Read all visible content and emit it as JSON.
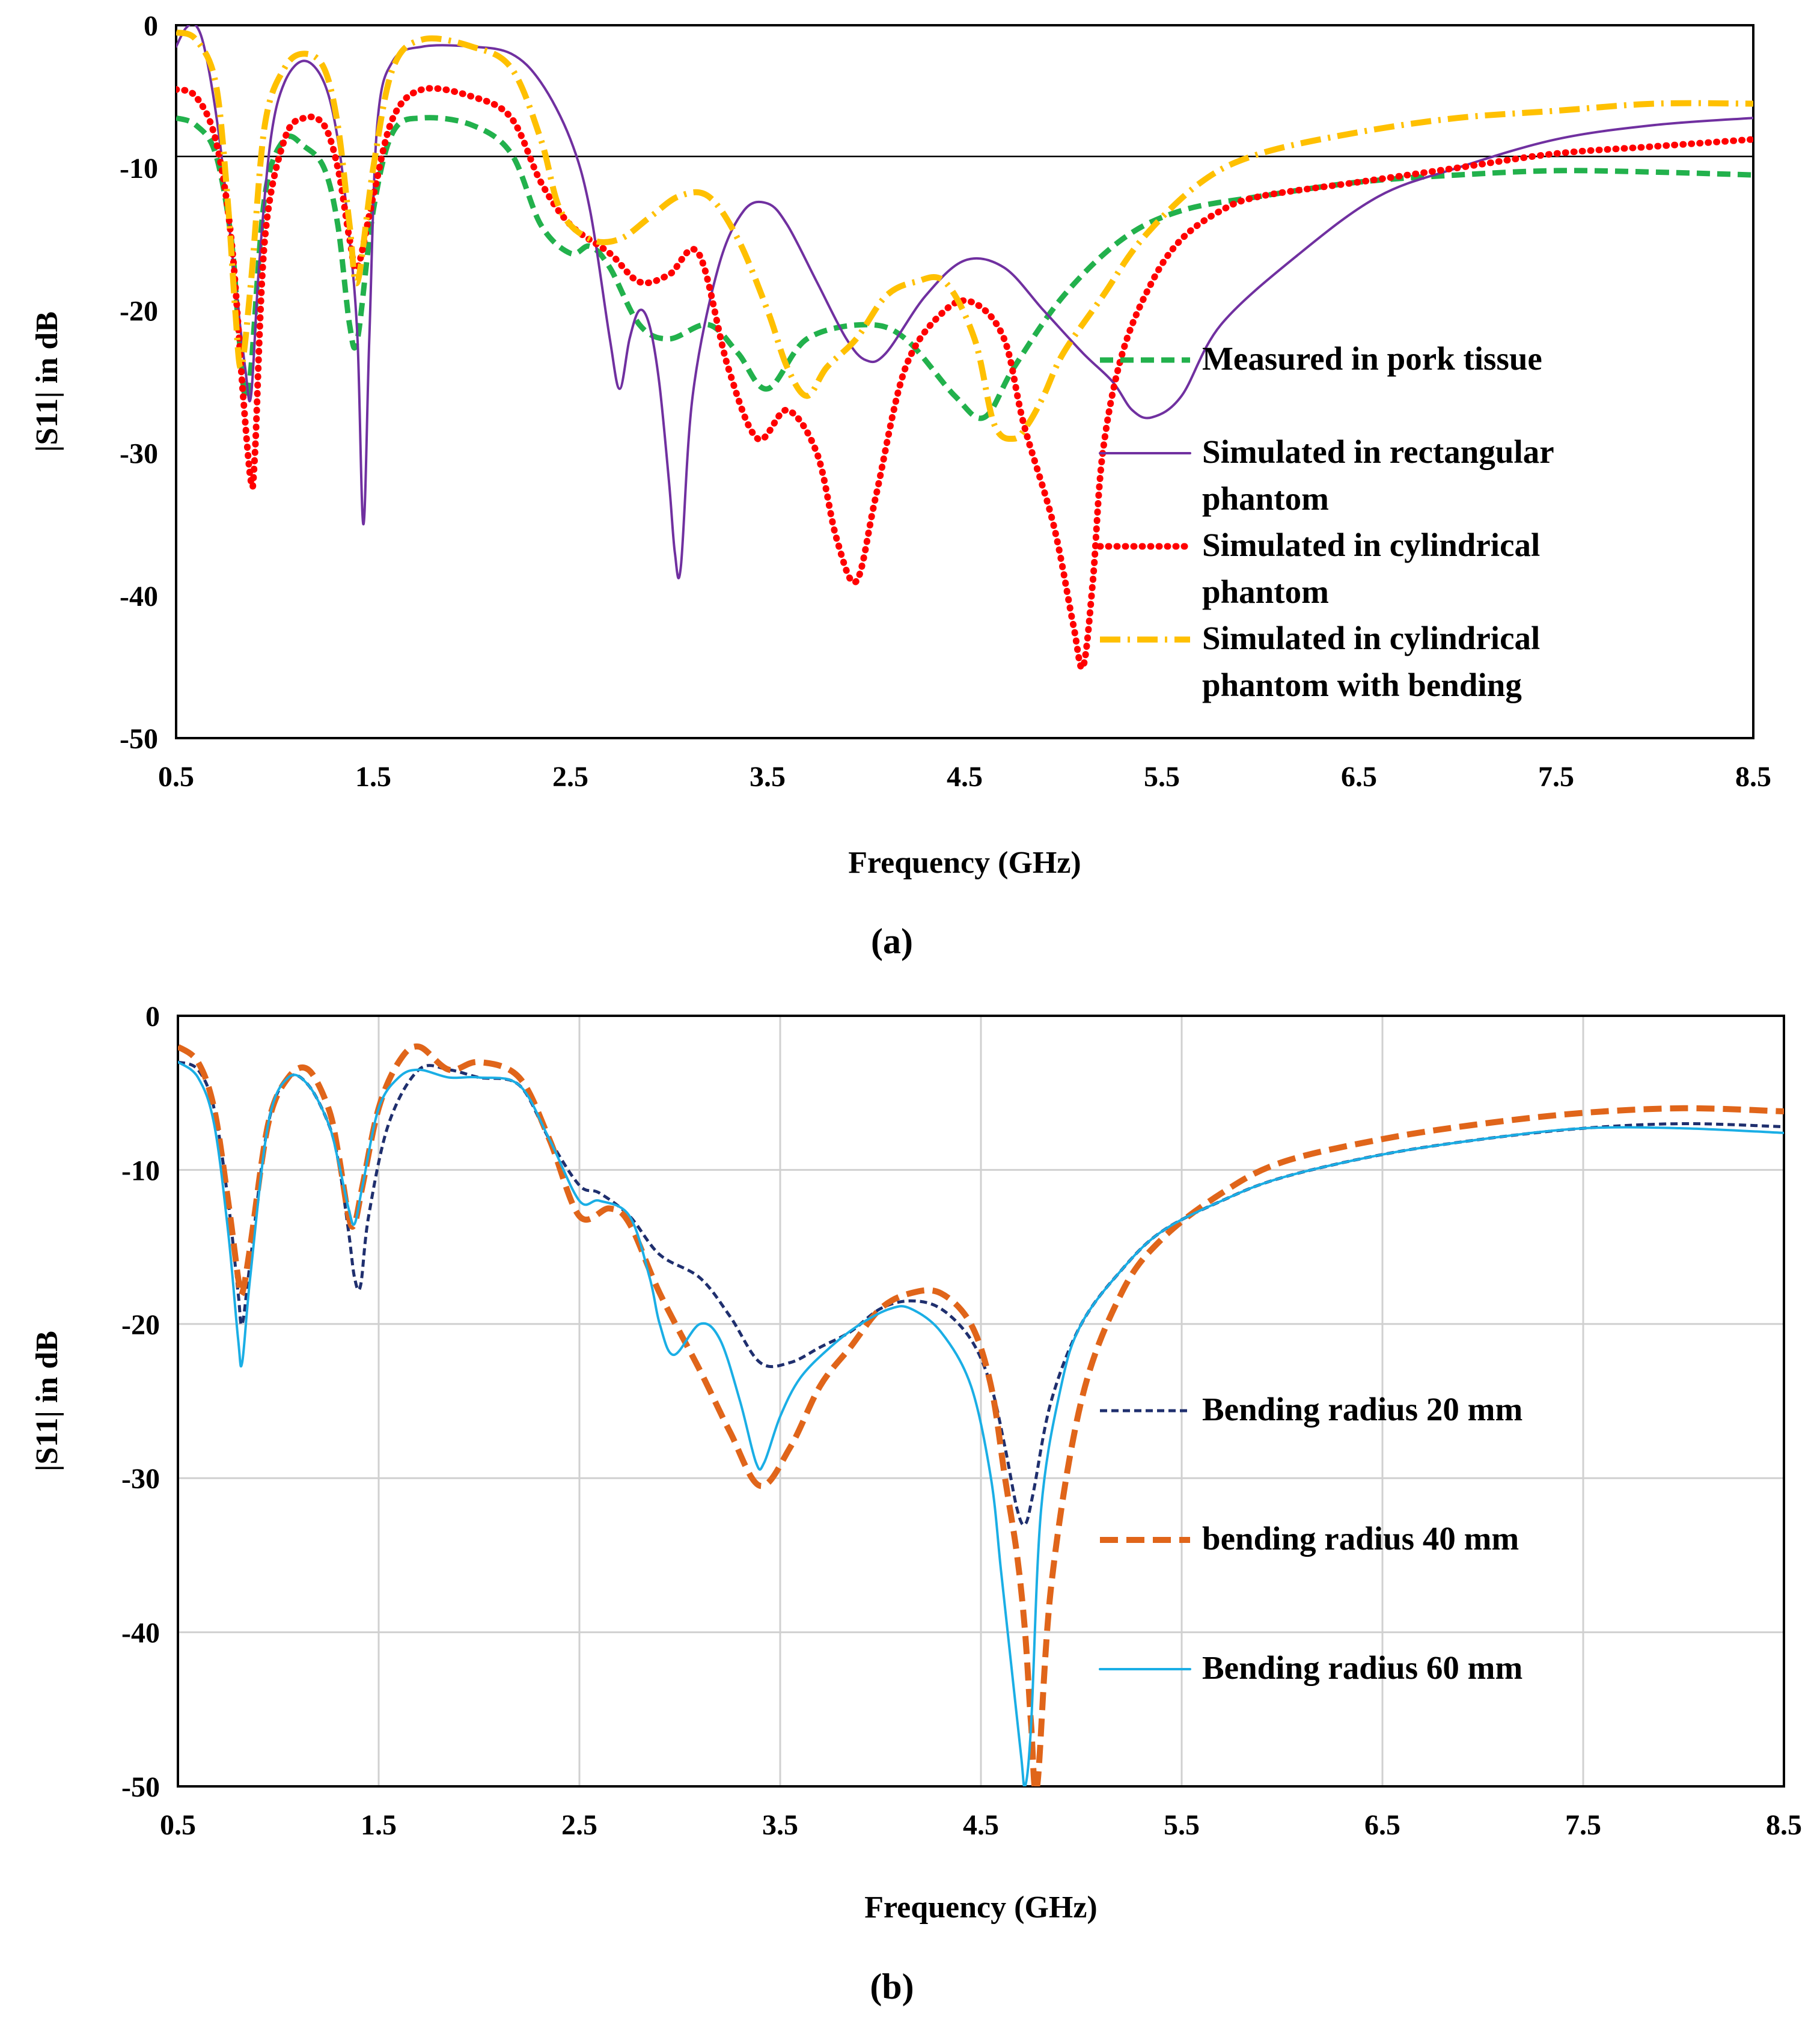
{
  "chart_data": [
    {
      "type": "line",
      "caption": "(a)",
      "title": "",
      "xlabel": "Frequency (GHz)",
      "ylabel": "|S11| in dB",
      "xlim": [
        0.5,
        8.5
      ],
      "ylim": [
        -50,
        0
      ],
      "xticks": [
        0.5,
        1.5,
        2.5,
        3.5,
        4.5,
        5.5,
        6.5,
        7.5,
        8.5
      ],
      "xtick_labels": [
        "0.5",
        "1.5",
        "2.5",
        "3.5",
        "4.5",
        "5.5",
        "6.5",
        "7.5",
        "8.5"
      ],
      "yticks": [
        0,
        -10,
        -20,
        -30,
        -40,
        -50
      ],
      "ytick_labels": [
        "0",
        "-10",
        "-20",
        "-30",
        "-40",
        "-50"
      ],
      "grid": false,
      "reference_line": -9.2,
      "legend_position": "right",
      "series": [
        {
          "name": "Measured in pork tissue",
          "legend_lines": [
            "Measured in pork tissue"
          ],
          "color": "#22b14c",
          "dash": "dash",
          "x": [
            0.5,
            0.6,
            0.7,
            0.78,
            0.82,
            0.85,
            0.88,
            0.95,
            1.05,
            1.15,
            1.25,
            1.32,
            1.38,
            1.42,
            1.5,
            1.6,
            1.75,
            2.0,
            2.2,
            2.35,
            2.5,
            2.6,
            2.7,
            2.85,
            3.0,
            3.2,
            3.35,
            3.5,
            3.7,
            4.0,
            4.2,
            4.45,
            4.6,
            4.75,
            5.0,
            5.3,
            5.6,
            6.0,
            6.5,
            7.0,
            7.5,
            8.0,
            8.5
          ],
          "y": [
            -6.5,
            -7,
            -9,
            -15,
            -22,
            -26,
            -24,
            -12,
            -8,
            -8.5,
            -10,
            -14,
            -21,
            -22,
            -13,
            -7.5,
            -6.5,
            -7,
            -9,
            -14,
            -16,
            -15.5,
            -17,
            -21,
            -22,
            -21,
            -23,
            -25.5,
            -22,
            -21,
            -22,
            -26,
            -27.5,
            -24,
            -19,
            -15,
            -13,
            -12,
            -11,
            -10.5,
            -10.2,
            -10.3,
            -10.5
          ]
        },
        {
          "name": "Simulated in rectangular phantom",
          "legend_lines": [
            "Simulated in rectangular",
            "phantom"
          ],
          "color": "#7030a0",
          "dash": "solid",
          "x": [
            0.5,
            0.55,
            0.6,
            0.65,
            0.72,
            0.8,
            0.85,
            0.88,
            0.92,
            0.98,
            1.05,
            1.15,
            1.25,
            1.32,
            1.38,
            1.42,
            1.45,
            1.48,
            1.52,
            1.6,
            1.75,
            2.0,
            2.2,
            2.35,
            2.5,
            2.6,
            2.7,
            2.75,
            2.8,
            2.85,
            2.9,
            2.95,
            3.0,
            3.03,
            3.06,
            3.12,
            3.25,
            3.38,
            3.5,
            3.6,
            3.75,
            3.9,
            4.0,
            4.1,
            4.3,
            4.5,
            4.7,
            4.9,
            5.1,
            5.25,
            5.35,
            5.45,
            5.6,
            5.8,
            6.2,
            6.6,
            7.0,
            7.5,
            8.0,
            8.5
          ],
          "y": [
            -1.5,
            -0.2,
            0,
            -2,
            -8,
            -18,
            -24,
            -26,
            -17,
            -8,
            -4,
            -2.5,
            -4,
            -8,
            -15,
            -22,
            -35,
            -22,
            -7,
            -2.5,
            -1.5,
            -1.5,
            -2,
            -4,
            -8,
            -13,
            -22,
            -25.5,
            -22,
            -20,
            -21,
            -25,
            -32,
            -37,
            -38,
            -26,
            -17,
            -13,
            -12.5,
            -14,
            -18,
            -22,
            -23.5,
            -23,
            -19,
            -16.5,
            -17,
            -20,
            -23,
            -25,
            -27,
            -27.5,
            -26,
            -21,
            -16,
            -12,
            -10,
            -8,
            -7,
            -6.5
          ]
        },
        {
          "name": "Simulated in cylindrical phantom",
          "legend_lines": [
            "Simulated in cylindrical",
            "phantom"
          ],
          "color": "#ff0000",
          "dash": "dot",
          "x": [
            0.5,
            0.6,
            0.7,
            0.78,
            0.84,
            0.88,
            0.9,
            0.95,
            1.05,
            1.15,
            1.25,
            1.32,
            1.38,
            1.42,
            1.5,
            1.6,
            1.75,
            2.0,
            2.2,
            2.35,
            2.5,
            2.7,
            2.85,
            3.0,
            3.15,
            3.3,
            3.45,
            3.6,
            3.75,
            3.85,
            3.95,
            4.05,
            4.2,
            4.4,
            4.55,
            4.7,
            4.8,
            4.95,
            5.05,
            5.1,
            5.15,
            5.2,
            5.3,
            5.45,
            5.6,
            5.8,
            6.0,
            6.5,
            7.0,
            7.5,
            8.0,
            8.5
          ],
          "y": [
            -4.5,
            -5,
            -8,
            -15,
            -26,
            -32,
            -30,
            -15,
            -8,
            -6.5,
            -7,
            -10,
            -15,
            -17,
            -12,
            -6.5,
            -4.5,
            -5,
            -6.5,
            -11,
            -14,
            -16,
            -18,
            -17.5,
            -16,
            -24,
            -29,
            -27,
            -30,
            -36,
            -39,
            -33,
            -24,
            -20,
            -19.5,
            -22,
            -28,
            -35,
            -42,
            -45,
            -39,
            -30,
            -23,
            -18,
            -15,
            -13,
            -12,
            -11,
            -10,
            -9,
            -8.5,
            -8
          ]
        },
        {
          "name": "Simulated in cylindrical phantom with bending",
          "legend_lines": [
            "Simulated in cylindrical",
            "phantom with bending"
          ],
          "color": "#ffc000",
          "dash": "dashdot",
          "x": [
            0.5,
            0.6,
            0.7,
            0.76,
            0.8,
            0.83,
            0.88,
            0.95,
            1.05,
            1.15,
            1.25,
            1.32,
            1.38,
            1.42,
            1.5,
            1.6,
            1.75,
            2.0,
            2.2,
            2.35,
            2.45,
            2.6,
            2.75,
            2.9,
            3.05,
            3.2,
            3.35,
            3.5,
            3.6,
            3.7,
            3.8,
            3.95,
            4.1,
            4.25,
            4.4,
            4.55,
            4.65,
            4.75,
            4.82,
            4.9,
            5.0,
            5.2,
            5.4,
            5.7,
            6.0,
            6.5,
            7.0,
            7.5,
            8.0,
            8.5
          ],
          "y": [
            -0.5,
            -1,
            -4,
            -12,
            -20,
            -24,
            -18,
            -7,
            -3,
            -2,
            -3,
            -7,
            -14,
            -18,
            -10,
            -3,
            -1,
            -1.5,
            -3,
            -8,
            -13,
            -15,
            -15,
            -13.5,
            -12,
            -12,
            -15,
            -20,
            -24,
            -26,
            -24,
            -22,
            -19,
            -18,
            -18,
            -22,
            -28,
            -29,
            -28,
            -26,
            -23,
            -19,
            -15,
            -11,
            -9,
            -7.5,
            -6.5,
            -6,
            -5.5,
            -5.5
          ]
        }
      ]
    },
    {
      "type": "line",
      "caption": "(b)",
      "title": "",
      "xlabel": "Frequency (GHz)",
      "ylabel": "|S11| in dB",
      "xlim": [
        0.5,
        8.5
      ],
      "ylim": [
        -50,
        0
      ],
      "xticks": [
        0.5,
        1.5,
        2.5,
        3.5,
        4.5,
        5.5,
        6.5,
        7.5,
        8.5
      ],
      "xtick_labels": [
        "0.5",
        "1.5",
        "2.5",
        "3.5",
        "4.5",
        "5.5",
        "6.5",
        "7.5",
        "8.5"
      ],
      "yticks": [
        0,
        -10,
        -20,
        -30,
        -40,
        -50
      ],
      "ytick_labels": [
        "0",
        "-10",
        "-20",
        "-30",
        "-40",
        "-50"
      ],
      "grid": true,
      "legend_position": "right",
      "series": [
        {
          "name": "Bending radius 20 mm",
          "legend_lines": [
            "Bending radius 20 mm"
          ],
          "color": "#1f2f6e",
          "dash": "shortdash",
          "x": [
            0.5,
            0.6,
            0.68,
            0.75,
            0.8,
            0.82,
            0.86,
            0.95,
            1.05,
            1.15,
            1.25,
            1.3,
            1.35,
            1.38,
            1.41,
            1.45,
            1.55,
            1.7,
            1.85,
            2.0,
            2.2,
            2.35,
            2.5,
            2.6,
            2.75,
            2.9,
            3.1,
            3.25,
            3.4,
            3.55,
            3.7,
            3.85,
            4.0,
            4.15,
            4.3,
            4.45,
            4.55,
            4.62,
            4.68,
            4.72,
            4.76,
            4.85,
            5.0,
            5.2,
            5.4,
            5.7,
            6.0,
            6.5,
            7.0,
            7.5,
            8.0,
            8.5
          ],
          "y": [
            -3,
            -3.5,
            -6,
            -12,
            -18,
            -20,
            -16,
            -7,
            -4,
            -4.5,
            -7,
            -9.5,
            -14,
            -17,
            -17.5,
            -13,
            -7,
            -3.5,
            -3.5,
            -4,
            -4.5,
            -8,
            -11,
            -11.5,
            -13,
            -15.5,
            -17,
            -19.5,
            -22.5,
            -22.5,
            -21.5,
            -20.5,
            -19,
            -18.5,
            -19,
            -21,
            -24,
            -28,
            -32,
            -33,
            -31,
            -25,
            -20,
            -16.5,
            -14,
            -12,
            -10.5,
            -9,
            -8,
            -7.3,
            -7,
            -7.2
          ]
        },
        {
          "name": "bending radius 40 mm",
          "legend_lines": [
            "bending radius 40 mm"
          ],
          "color": "#e0651a",
          "dash": "longdash",
          "x": [
            0.5,
            0.6,
            0.68,
            0.75,
            0.8,
            0.82,
            0.86,
            0.95,
            1.05,
            1.15,
            1.25,
            1.3,
            1.35,
            1.38,
            1.42,
            1.5,
            1.6,
            1.7,
            1.85,
            2.0,
            2.2,
            2.35,
            2.5,
            2.65,
            2.75,
            2.9,
            3.1,
            3.25,
            3.4,
            3.55,
            3.7,
            3.85,
            4.0,
            4.15,
            4.3,
            4.45,
            4.55,
            4.62,
            4.68,
            4.72,
            4.75,
            4.78,
            4.85,
            5.0,
            5.2,
            5.4,
            5.7,
            6.0,
            6.5,
            7.0,
            7.5,
            8.0,
            8.5
          ],
          "y": [
            -2,
            -3,
            -6,
            -12,
            -17,
            -18,
            -15,
            -7,
            -4,
            -3.5,
            -6,
            -9,
            -13,
            -13.5,
            -11,
            -6,
            -3,
            -2,
            -3.5,
            -3,
            -4,
            -8,
            -13,
            -12.5,
            -13.5,
            -18,
            -23,
            -27,
            -30.5,
            -28,
            -24,
            -21.5,
            -19,
            -18,
            -18,
            -20,
            -24,
            -30,
            -35,
            -40,
            -46,
            -50,
            -37,
            -25,
            -18,
            -14.5,
            -11.5,
            -9.5,
            -8,
            -7,
            -6.3,
            -6,
            -6.2
          ]
        },
        {
          "name": "Bending radius 60 mm",
          "legend_lines": [
            "Bending radius 60 mm"
          ],
          "color": "#1aaee5",
          "dash": "solid",
          "x": [
            0.5,
            0.6,
            0.68,
            0.75,
            0.8,
            0.82,
            0.86,
            0.95,
            1.05,
            1.15,
            1.25,
            1.3,
            1.35,
            1.38,
            1.42,
            1.5,
            1.6,
            1.7,
            1.85,
            2.0,
            2.2,
            2.35,
            2.5,
            2.6,
            2.75,
            2.85,
            2.9,
            2.97,
            3.1,
            3.2,
            3.3,
            3.38,
            3.42,
            3.5,
            3.6,
            3.75,
            3.9,
            4.05,
            4.15,
            4.3,
            4.45,
            4.55,
            4.6,
            4.65,
            4.7,
            4.72,
            4.75,
            4.8,
            4.9,
            5.0,
            5.2,
            5.4,
            5.7,
            6.0,
            6.5,
            7.0,
            7.5,
            8.0,
            8.5
          ],
          "y": [
            -3,
            -4,
            -7,
            -14,
            -21,
            -22.5,
            -17,
            -7,
            -4,
            -4.5,
            -7,
            -9.5,
            -12.5,
            -13.5,
            -11,
            -6,
            -4,
            -3.5,
            -4,
            -4,
            -4.5,
            -8,
            -12,
            -12,
            -13,
            -17,
            -20,
            -22,
            -20,
            -21,
            -25,
            -29,
            -29,
            -26,
            -23.5,
            -21.5,
            -20,
            -19,
            -19,
            -20.5,
            -24,
            -30,
            -36,
            -42,
            -48,
            -50,
            -46,
            -32,
            -24,
            -20,
            -16.5,
            -14,
            -12,
            -10.5,
            -9,
            -8,
            -7.3,
            -7.3,
            -7.6
          ]
        }
      ]
    }
  ]
}
